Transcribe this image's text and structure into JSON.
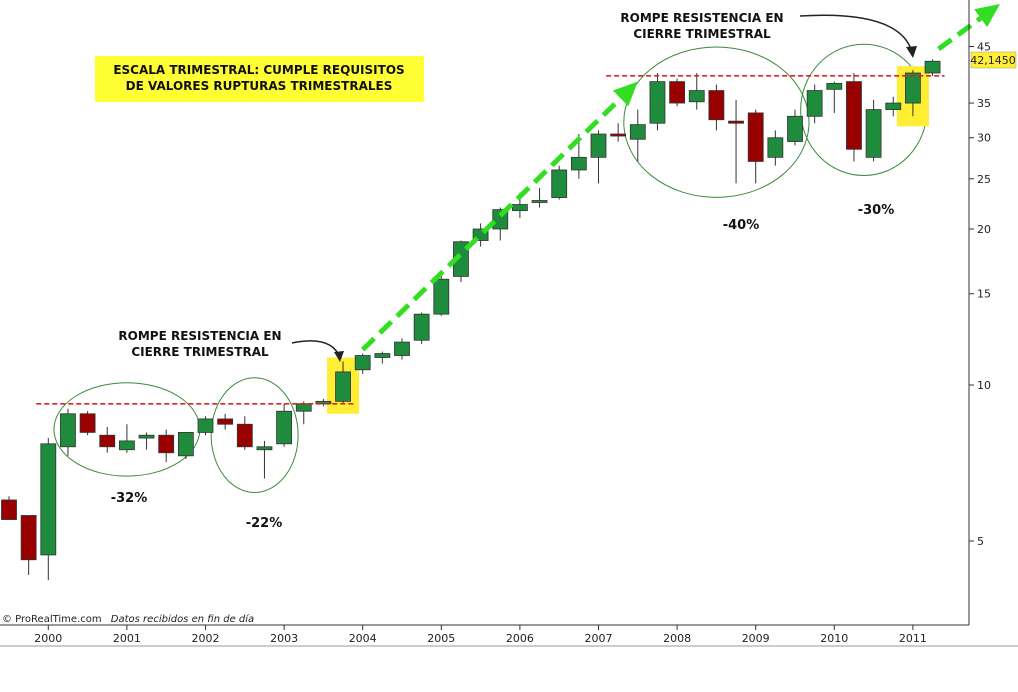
{
  "chart_data": {
    "type": "candlestick",
    "title": "ESCALA TRIMESTRAL: CUMPLE REQUISITOS DE VALORES RUPTURAS TRIMESTRALES",
    "title_lines": [
      "ESCALA TRIMESTRAL: CUMPLE REQUISITOS",
      "DE VALORES RUPTURAS TRIMESTRALES"
    ],
    "yscale": "log",
    "ylim": [
      3.7,
      50
    ],
    "yticks": [
      5,
      10,
      15,
      20,
      25,
      30,
      35,
      45
    ],
    "x_ticks": [
      "2000",
      "2001",
      "2002",
      "2003",
      "2004",
      "2005",
      "2006",
      "2007",
      "2008",
      "2009",
      "2010",
      "2011"
    ],
    "last_price_label": "42,1450",
    "colors": {
      "up": "#1e8c3c",
      "down": "#990000",
      "resistance": "#dd2222",
      "arrow": "#33dd22",
      "highlight": "#ffee33",
      "circle": "#3b8a3b",
      "last_price": "#ffee33"
    },
    "candles": [
      {
        "q": "1999-Q3",
        "o": 6.0,
        "h": 6.1,
        "l": 5.5,
        "c": 5.5
      },
      {
        "q": "1999-Q4",
        "o": 5.6,
        "h": 5.6,
        "l": 4.3,
        "c": 4.6
      },
      {
        "q": "2000-Q1",
        "o": 4.7,
        "h": 7.9,
        "l": 4.2,
        "c": 7.7
      },
      {
        "q": "2000-Q2",
        "o": 7.6,
        "h": 9.0,
        "l": 7.3,
        "c": 8.8
      },
      {
        "q": "2000-Q3",
        "o": 8.8,
        "h": 8.9,
        "l": 8.0,
        "c": 8.1
      },
      {
        "q": "2000-Q4",
        "o": 8.0,
        "h": 8.3,
        "l": 7.4,
        "c": 7.6
      },
      {
        "q": "2001-Q1",
        "o": 7.5,
        "h": 8.4,
        "l": 7.4,
        "c": 7.8
      },
      {
        "q": "2001-Q2",
        "o": 7.9,
        "h": 8.1,
        "l": 7.5,
        "c": 8.0
      },
      {
        "q": "2001-Q3",
        "o": 8.0,
        "h": 8.2,
        "l": 7.1,
        "c": 7.4
      },
      {
        "q": "2001-Q4",
        "o": 7.3,
        "h": 8.1,
        "l": 7.2,
        "c": 8.1
      },
      {
        "q": "2002-Q1",
        "o": 8.1,
        "h": 8.7,
        "l": 8.0,
        "c": 8.6
      },
      {
        "q": "2002-Q2",
        "o": 8.6,
        "h": 8.8,
        "l": 8.2,
        "c": 8.4
      },
      {
        "q": "2002-Q3",
        "o": 8.4,
        "h": 8.7,
        "l": 7.5,
        "c": 7.6
      },
      {
        "q": "2002-Q4",
        "o": 7.5,
        "h": 7.8,
        "l": 6.6,
        "c": 7.6
      },
      {
        "q": "2003-Q1",
        "o": 7.7,
        "h": 9.2,
        "l": 7.6,
        "c": 8.9
      },
      {
        "q": "2003-Q2",
        "o": 8.9,
        "h": 9.3,
        "l": 8.4,
        "c": 9.2
      },
      {
        "q": "2003-Q3",
        "o": 9.2,
        "h": 9.4,
        "l": 9.1,
        "c": 9.3
      },
      {
        "q": "2003-Q4",
        "o": 9.3,
        "h": 11.1,
        "l": 9.2,
        "c": 10.6
      },
      {
        "q": "2004-Q1",
        "o": 10.7,
        "h": 11.5,
        "l": 10.5,
        "c": 11.4
      },
      {
        "q": "2004-Q2",
        "o": 11.3,
        "h": 11.6,
        "l": 11.0,
        "c": 11.5
      },
      {
        "q": "2004-Q3",
        "o": 11.4,
        "h": 12.3,
        "l": 11.2,
        "c": 12.1
      },
      {
        "q": "2004-Q4",
        "o": 12.2,
        "h": 13.8,
        "l": 12.0,
        "c": 13.7
      },
      {
        "q": "2005-Q1",
        "o": 13.7,
        "h": 16.5,
        "l": 13.6,
        "c": 16.0
      },
      {
        "q": "2005-Q2",
        "o": 16.2,
        "h": 19.0,
        "l": 15.8,
        "c": 18.9
      },
      {
        "q": "2005-Q3",
        "o": 19.0,
        "h": 20.5,
        "l": 18.5,
        "c": 20.0
      },
      {
        "q": "2005-Q4",
        "o": 20.0,
        "h": 22.0,
        "l": 19.0,
        "c": 21.8
      },
      {
        "q": "2006-Q1",
        "o": 21.7,
        "h": 23.5,
        "l": 21.0,
        "c": 22.3
      },
      {
        "q": "2006-Q2",
        "o": 22.5,
        "h": 24.0,
        "l": 22.0,
        "c": 22.7
      },
      {
        "q": "2006-Q3",
        "o": 23.0,
        "h": 26.5,
        "l": 22.8,
        "c": 26.0
      },
      {
        "q": "2006-Q4",
        "o": 26.0,
        "h": 30.5,
        "l": 25.0,
        "c": 27.5
      },
      {
        "q": "2007-Q1",
        "o": 27.5,
        "h": 31.0,
        "l": 24.5,
        "c": 30.5
      },
      {
        "q": "2007-Q2",
        "o": 30.5,
        "h": 32.0,
        "l": 29.5,
        "c": 30.3
      },
      {
        "q": "2007-Q3",
        "o": 29.8,
        "h": 34.0,
        "l": 27.0,
        "c": 31.8
      },
      {
        "q": "2007-Q4",
        "o": 32.0,
        "h": 40.0,
        "l": 31.0,
        "c": 38.5
      },
      {
        "q": "2008-Q1",
        "o": 38.5,
        "h": 39.0,
        "l": 34.5,
        "c": 35.0
      },
      {
        "q": "2008-Q2",
        "o": 35.2,
        "h": 40.0,
        "l": 34.0,
        "c": 37.0
      },
      {
        "q": "2008-Q3",
        "o": 37.0,
        "h": 38.0,
        "l": 31.0,
        "c": 32.5
      },
      {
        "q": "2008-Q4",
        "o": 32.3,
        "h": 35.5,
        "l": 24.5,
        "c": 32.0
      },
      {
        "q": "2009-Q1",
        "o": 33.5,
        "h": 34.0,
        "l": 24.5,
        "c": 27.0
      },
      {
        "q": "2009-Q2",
        "o": 27.5,
        "h": 31.0,
        "l": 26.5,
        "c": 30.0
      },
      {
        "q": "2009-Q3",
        "o": 29.5,
        "h": 34.0,
        "l": 29.0,
        "c": 33.0
      },
      {
        "q": "2009-Q4",
        "o": 33.0,
        "h": 38.0,
        "l": 32.0,
        "c": 37.0
      },
      {
        "q": "2010-Q1",
        "o": 37.2,
        "h": 38.5,
        "l": 33.5,
        "c": 38.2
      },
      {
        "q": "2010-Q2",
        "o": 38.5,
        "h": 40.0,
        "l": 27.0,
        "c": 28.5
      },
      {
        "q": "2010-Q3",
        "o": 27.5,
        "h": 35.5,
        "l": 27.0,
        "c": 34.0
      },
      {
        "q": "2010-Q4",
        "o": 34.0,
        "h": 36.0,
        "l": 33.0,
        "c": 35.0
      },
      {
        "q": "2011-Q1",
        "o": 35.0,
        "h": 40.5,
        "l": 33.0,
        "c": 40.0
      },
      {
        "q": "2011-Q2",
        "o": 40.0,
        "h": 42.5,
        "l": 39.5,
        "c": 42.145
      }
    ],
    "resistance_lines": [
      {
        "value": 9.2,
        "from": "2000-Q1",
        "to": "2003-Q4"
      },
      {
        "value": 39.5,
        "from": "2007-Q2",
        "to": "2011-Q2"
      }
    ],
    "annotations": [
      {
        "lines": [
          "ROMPE RESISTENCIA EN",
          "CIERRE TRIMESTRAL"
        ],
        "points_to": "2003-Q4"
      },
      {
        "lines": [
          "ROMPE RESISTENCIA EN",
          "CIERRE TRIMESTRAL"
        ],
        "points_to": "2011-Q1"
      }
    ],
    "corrections": [
      {
        "label": "-32%",
        "from": "2000-Q2",
        "to": "2001-Q4"
      },
      {
        "label": "-22%",
        "from": "2002-Q2",
        "to": "2003-Q1"
      },
      {
        "label": "-40%",
        "from": "2007-Q3",
        "to": "2009-Q3"
      },
      {
        "label": "-30%",
        "from": "2009-Q4",
        "to": "2011-Q1"
      }
    ],
    "breakout_highlights": [
      "2003-Q4",
      "2011-Q1"
    ]
  },
  "footer": {
    "credit": "© ProRealTime.com",
    "credit_note": "Datos recibidos en fin de día"
  }
}
